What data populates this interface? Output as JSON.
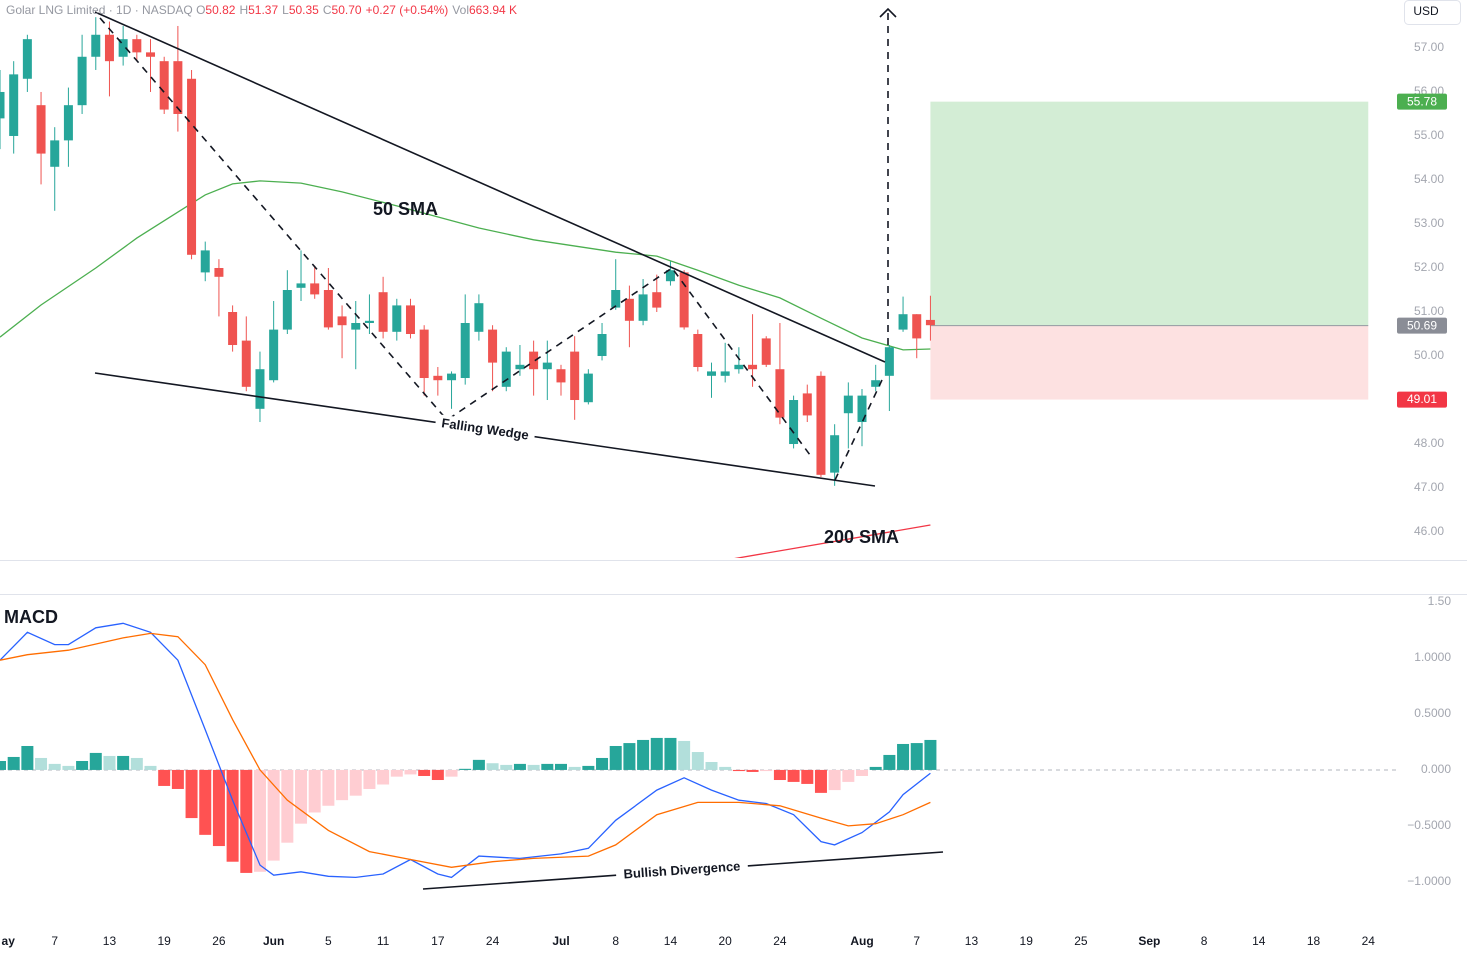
{
  "header": {
    "symbol": "Golar LNG Limited · 1D · NASDAQ",
    "fields": [
      {
        "label": "O",
        "value": "50.82"
      },
      {
        "label": "H",
        "value": "51.37"
      },
      {
        "label": "L",
        "value": "50.35"
      },
      {
        "label": "C",
        "value": "50.70"
      }
    ],
    "change": "+0.27 (+0.54%)",
    "volume": {
      "label": "Vol",
      "value": "663.94 K"
    }
  },
  "currency": "USD",
  "chart_data": [
    {
      "type": "candlestick",
      "x": [
        0,
        1,
        2,
        3,
        4,
        5,
        6,
        7,
        8,
        9,
        10,
        11,
        12,
        13,
        14,
        15,
        16,
        17,
        18,
        19,
        20,
        21,
        22,
        23,
        24,
        25,
        26,
        27,
        28,
        29,
        30,
        31,
        32,
        33,
        34,
        35,
        36,
        37,
        38,
        39,
        40,
        41,
        42,
        43,
        44,
        45,
        46,
        47,
        48,
        49,
        50,
        51,
        52,
        53,
        54,
        55,
        56,
        57,
        58,
        59,
        60,
        61,
        62,
        63,
        64,
        65,
        66,
        67,
        68
      ],
      "open": [
        55.4,
        55.0,
        56.3,
        55.7,
        54.3,
        54.9,
        55.7,
        56.8,
        57.3,
        56.8,
        57.2,
        56.9,
        56.7,
        56.7,
        56.3,
        51.9,
        52.0,
        51.0,
        50.35,
        48.8,
        49.45,
        50.6,
        51.55,
        51.65,
        51.5,
        50.9,
        50.6,
        50.75,
        51.45,
        50.55,
        51.15,
        50.6,
        49.55,
        49.45,
        49.5,
        50.55,
        50.6,
        49.3,
        49.7,
        50.1,
        49.7,
        49.7,
        50.1,
        48.95,
        50.0,
        51.1,
        51.3,
        50.8,
        51.45,
        51.7,
        51.9,
        50.5,
        49.55,
        49.55,
        49.7,
        49.8,
        50.4,
        49.7,
        48.0,
        49.15,
        49.55,
        47.35,
        48.7,
        48.5,
        49.3,
        49.55,
        50.6,
        50.95,
        50.82
      ],
      "high": [
        56.5,
        56.7,
        57.3,
        56.0,
        55.2,
        56.1,
        57.3,
        57.7,
        57.6,
        57.5,
        57.3,
        57.2,
        56.8,
        57.5,
        56.5,
        52.6,
        52.2,
        51.15,
        50.9,
        50.1,
        51.25,
        51.95,
        52.4,
        52.05,
        52.0,
        51.15,
        51.25,
        51.4,
        51.8,
        51.3,
        51.3,
        50.7,
        49.75,
        49.65,
        51.4,
        51.4,
        50.7,
        50.2,
        50.25,
        50.35,
        50.35,
        49.8,
        50.45,
        49.7,
        50.75,
        52.2,
        51.6,
        51.75,
        51.85,
        52.15,
        51.95,
        50.6,
        49.85,
        50.3,
        50.2,
        50.95,
        50.45,
        50.75,
        49.1,
        49.35,
        49.65,
        48.45,
        49.4,
        49.25,
        49.8,
        50.25,
        51.35,
        50.95,
        51.37
      ],
      "low": [
        54.7,
        54.6,
        56.0,
        53.9,
        53.3,
        54.3,
        55.5,
        56.5,
        55.9,
        56.6,
        56.7,
        56.0,
        55.5,
        55.1,
        52.2,
        51.7,
        50.9,
        50.1,
        49.2,
        48.5,
        49.4,
        50.5,
        51.25,
        51.3,
        50.6,
        49.95,
        49.7,
        50.5,
        50.4,
        50.35,
        50.4,
        49.1,
        49.1,
        48.8,
        49.35,
        50.35,
        49.2,
        49.2,
        49.55,
        49.1,
        49.0,
        49.1,
        48.55,
        48.9,
        49.9,
        51.05,
        50.2,
        50.7,
        51.0,
        51.6,
        50.6,
        49.65,
        49.05,
        49.4,
        49.6,
        49.3,
        49.75,
        48.45,
        47.9,
        48.5,
        47.25,
        47.05,
        47.9,
        47.95,
        49.2,
        48.75,
        50.55,
        49.95,
        50.35
      ],
      "close": [
        56.0,
        56.4,
        57.2,
        54.6,
        54.9,
        55.7,
        56.8,
        57.3,
        56.7,
        57.2,
        56.9,
        56.8,
        55.6,
        55.5,
        52.3,
        52.4,
        51.8,
        50.25,
        49.3,
        49.7,
        50.6,
        51.5,
        51.65,
        51.4,
        50.65,
        50.7,
        50.75,
        50.8,
        50.55,
        51.15,
        50.5,
        49.5,
        49.45,
        49.6,
        50.75,
        51.2,
        49.85,
        50.1,
        49.8,
        49.7,
        49.85,
        49.4,
        49.0,
        49.6,
        50.5,
        51.5,
        50.8,
        51.4,
        51.1,
        51.95,
        50.65,
        49.75,
        49.65,
        49.65,
        49.8,
        49.7,
        49.8,
        48.6,
        49.0,
        48.65,
        47.3,
        48.2,
        49.1,
        49.1,
        49.45,
        50.2,
        50.95,
        50.4,
        50.7
      ],
      "up_color": "#26a69a",
      "down_color": "#ef5350",
      "series": [
        {
          "name": "50 SMA",
          "color": "#4caf50",
          "x": [
            0,
            3,
            7,
            10,
            13,
            15,
            17,
            19,
            22,
            25,
            29,
            35,
            39,
            45,
            48,
            51,
            54,
            57,
            60,
            63,
            66,
            68
          ],
          "values": [
            50.43,
            51.16,
            52.0,
            52.68,
            53.27,
            53.66,
            53.91,
            53.98,
            53.93,
            53.73,
            53.41,
            52.91,
            52.64,
            52.36,
            52.27,
            51.95,
            51.61,
            51.32,
            50.86,
            50.41,
            50.14,
            50.16
          ]
        },
        {
          "name": "200 SMA",
          "color": "#f23645",
          "x": [
            53,
            68
          ],
          "values": [
            45.36,
            46.16
          ]
        }
      ],
      "position": {
        "x": [
          68,
          100
        ],
        "target": 55.78,
        "entry": 50.69,
        "stop": 49.01,
        "target_color": "#4caf50",
        "entry_color": "#8a8d96",
        "stop_color": "#f23645",
        "profit_fill": "#d3edd5",
        "loss_fill": "#fde1e1"
      },
      "annotations": [
        "Falling Wedge"
      ],
      "xlim": [
        0,
        102.1
      ],
      "ylim": [
        45.41,
        58.09
      ],
      "yticks": [
        {
          "value": 46,
          "label": "46.00"
        },
        {
          "value": 47,
          "label": "47.00"
        },
        {
          "value": 48,
          "label": "48.00"
        },
        {
          "value": 49,
          "label": "49.00"
        },
        {
          "value": 50,
          "label": "50.00"
        },
        {
          "value": 51,
          "label": "51.00"
        },
        {
          "value": 52,
          "label": "52.00"
        },
        {
          "value": 53,
          "label": "53.00"
        },
        {
          "value": 54,
          "label": "54.00"
        },
        {
          "value": 55,
          "label": "55.00"
        },
        {
          "value": 56,
          "label": "56.00"
        },
        {
          "value": 57,
          "label": "57.00"
        }
      ]
    },
    {
      "type": "macd",
      "title": "MACD",
      "histogram": {
        "x": [
          0,
          1,
          2,
          3,
          4,
          5,
          6,
          7,
          8,
          9,
          10,
          11,
          12,
          13,
          14,
          15,
          16,
          17,
          18,
          19,
          20,
          21,
          22,
          23,
          24,
          25,
          26,
          27,
          28,
          29,
          30,
          31,
          32,
          33,
          34,
          35,
          36,
          37,
          38,
          39,
          40,
          41,
          42,
          43,
          44,
          45,
          46,
          47,
          48,
          49,
          50,
          51,
          52,
          53,
          54,
          55,
          56,
          57,
          58,
          59,
          60,
          61,
          62,
          63,
          64,
          65,
          66,
          67,
          68
        ],
        "values": [
          0.08,
          0.116,
          0.214,
          0.107,
          0.054,
          0.036,
          0.08,
          0.152,
          0.125,
          0.125,
          0.107,
          0.036,
          -0.143,
          -0.17,
          -0.43,
          -0.58,
          -0.68,
          -0.82,
          -0.92,
          -0.91,
          -0.81,
          -0.65,
          -0.48,
          -0.38,
          -0.32,
          -0.27,
          -0.23,
          -0.17,
          -0.13,
          -0.06,
          -0.04,
          -0.054,
          -0.09,
          -0.06,
          0.01,
          0.09,
          0.06,
          0.045,
          0.054,
          0.045,
          0.054,
          0.054,
          0.027,
          0.036,
          0.107,
          0.214,
          0.24,
          0.268,
          0.286,
          0.286,
          0.259,
          0.16,
          0.071,
          0.027,
          -0.01,
          -0.018,
          -0.01,
          -0.09,
          -0.107,
          -0.125,
          -0.205,
          -0.18,
          -0.107,
          -0.054,
          0.027,
          0.134,
          0.232,
          0.24,
          0.268
        ],
        "colors": {
          "up_rising": "#26a69a",
          "up_falling": "#b2dfdb",
          "down_falling": "#ff5252",
          "down_rising": "#ffcdd2"
        }
      },
      "series": [
        {
          "color": "#2962ff",
          "x": [
            0,
            2,
            4,
            5,
            7,
            9,
            11,
            13,
            15,
            17,
            19,
            20,
            22,
            24,
            26,
            28,
            30,
            32,
            33,
            35,
            38,
            41,
            43,
            45,
            48,
            50,
            52,
            54,
            56,
            58,
            60,
            61,
            63,
            65,
            66,
            68
          ],
          "values": [
            0.98,
            1.23,
            1.12,
            1.12,
            1.27,
            1.31,
            1.23,
            0.98,
            0.36,
            -0.27,
            -0.85,
            -0.94,
            -0.91,
            -0.95,
            -0.96,
            -0.93,
            -0.8,
            -0.93,
            -0.96,
            -0.77,
            -0.79,
            -0.75,
            -0.7,
            -0.45,
            -0.18,
            -0.07,
            -0.18,
            -0.27,
            -0.3,
            -0.4,
            -0.64,
            -0.67,
            -0.56,
            -0.375,
            -0.22,
            -0.03
          ]
        },
        {
          "color": "#ff6d00",
          "x": [
            0,
            2,
            5,
            9,
            11,
            13,
            15,
            17,
            19,
            21,
            24,
            27,
            30,
            33,
            36,
            39,
            43,
            45,
            48,
            51,
            54,
            57,
            60,
            62,
            64,
            66,
            68
          ],
          "values": [
            0.98,
            1.03,
            1.07,
            1.18,
            1.22,
            1.19,
            0.94,
            0.45,
            0.0,
            -0.27,
            -0.54,
            -0.73,
            -0.8,
            -0.87,
            -0.82,
            -0.79,
            -0.77,
            -0.67,
            -0.4,
            -0.29,
            -0.29,
            -0.32,
            -0.43,
            -0.5,
            -0.48,
            -0.4,
            -0.29
          ]
        }
      ],
      "zero_line": true,
      "annotations": [
        "Bullish Divergence"
      ],
      "xlim": [
        0,
        102.1
      ],
      "ylim": [
        -1.43,
        1.554
      ],
      "yticks": [
        {
          "value": 1.5,
          "label": "1.50"
        },
        {
          "value": 1,
          "label": "1.0000"
        },
        {
          "value": 0.5,
          "label": "0.5000"
        },
        {
          "value": 0,
          "label": "0.000"
        },
        {
          "value": -0.5,
          "label": "−0.5000"
        },
        {
          "value": -1,
          "label": "−1.0000"
        }
      ],
      "xticks": [
        {
          "value": 0.6,
          "label": "ay"
        },
        {
          "value": 4,
          "label": "7"
        },
        {
          "value": 8,
          "label": "13"
        },
        {
          "value": 12,
          "label": "19"
        },
        {
          "value": 16,
          "label": "26"
        },
        {
          "value": 20,
          "label": "Jun"
        },
        {
          "value": 24,
          "label": "5"
        },
        {
          "value": 28,
          "label": "11"
        },
        {
          "value": 32,
          "label": "17"
        },
        {
          "value": 36,
          "label": "24"
        },
        {
          "value": 41,
          "label": "Jul"
        },
        {
          "value": 45,
          "label": "8"
        },
        {
          "value": 49,
          "label": "14"
        },
        {
          "value": 53,
          "label": "20"
        },
        {
          "value": 57,
          "label": "24"
        },
        {
          "value": 63,
          "label": "Aug"
        },
        {
          "value": 67,
          "label": "7"
        },
        {
          "value": 71,
          "label": "13"
        },
        {
          "value": 75,
          "label": "19"
        },
        {
          "value": 79,
          "label": "25"
        },
        {
          "value": 84,
          "label": "Sep"
        },
        {
          "value": 88,
          "label": "8"
        },
        {
          "value": 92,
          "label": "14"
        },
        {
          "value": 96,
          "label": "18"
        },
        {
          "value": 100,
          "label": "24"
        }
      ]
    }
  ]
}
